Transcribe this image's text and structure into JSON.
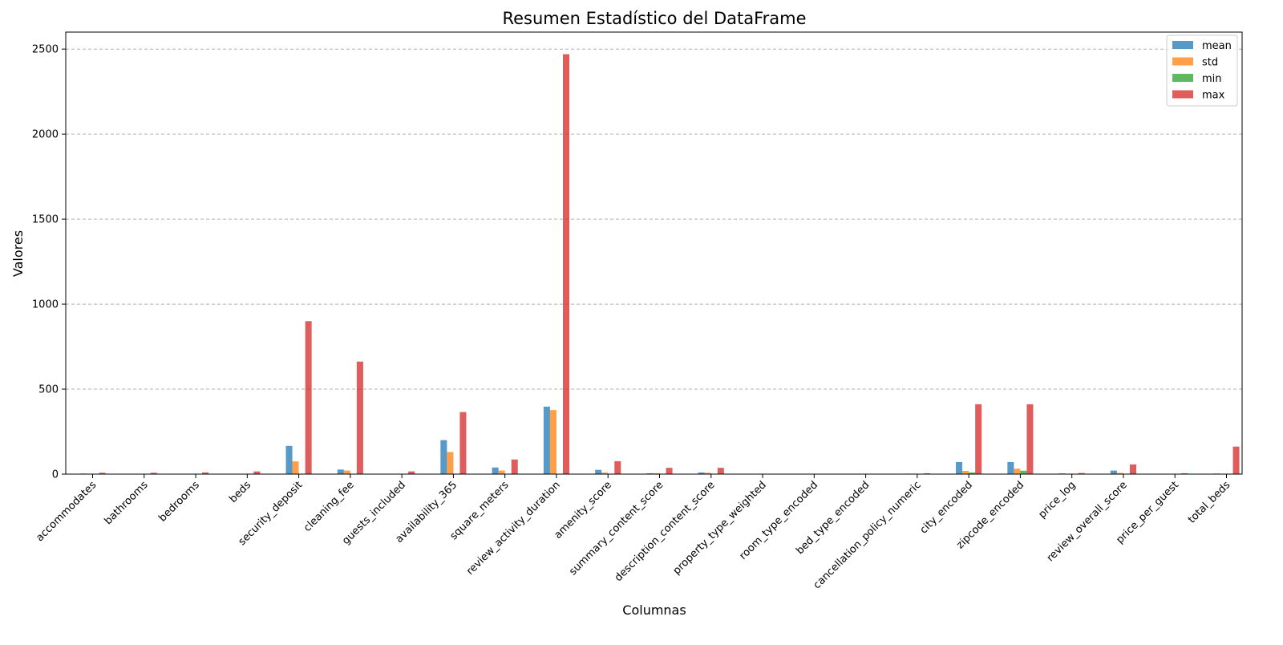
{
  "chart_data": {
    "type": "bar",
    "title": "Resumen Estadístico del DataFrame",
    "xlabel": "Columnas",
    "ylabel": "Valores",
    "ylim": [
      0,
      2600
    ],
    "yticks": [
      0,
      500,
      1000,
      1500,
      2000,
      2500
    ],
    "grid": "y-dashed",
    "legend_position": "top-right",
    "categories": [
      "accommodates",
      "bathrooms",
      "bedrooms",
      "beds",
      "security_deposit",
      "cleaning_fee",
      "guests_included",
      "availability_365",
      "square_meters",
      "review_activity_duration",
      "amenity_score",
      "summary_content_score",
      "description_content_score",
      "property_type_weighted",
      "room_type_encoded",
      "bed_type_encoded",
      "cancellation_policy_numeric",
      "city_encoded",
      "zipcode_encoded",
      "price_log",
      "review_overall_score",
      "price_per_guest",
      "total_beds"
    ],
    "series": [
      {
        "name": "mean",
        "color": "#1f77b4",
        "values": [
          3.3,
          1.3,
          1.4,
          2.1,
          166,
          27,
          1.6,
          200,
          39,
          397,
          25,
          5,
          10,
          1.2,
          0.6,
          0.1,
          2.6,
          71,
          71,
          4.1,
          21,
          2.3,
          3.3
        ]
      },
      {
        "name": "std",
        "color": "#ff7f0e",
        "values": [
          2.1,
          0.6,
          0.9,
          1.6,
          75,
          21,
          1.2,
          130,
          21,
          377,
          9,
          5,
          8,
          0.5,
          0.5,
          0.2,
          1.3,
          19,
          32,
          0.6,
          7,
          1.1,
          2.3
        ]
      },
      {
        "name": "min",
        "color": "#2ca02c",
        "values": [
          1,
          0,
          0,
          1,
          0,
          0,
          1,
          0,
          0,
          0,
          0,
          0,
          0,
          0.3,
          0,
          0,
          1,
          10,
          20,
          2.3,
          1,
          0,
          1
        ]
      },
      {
        "name": "max",
        "color": "#d62728",
        "values": [
          8,
          8,
          10,
          16,
          900,
          662,
          16,
          365,
          86,
          2470,
          76,
          37,
          37,
          2,
          1.7,
          1,
          5,
          411,
          411,
          6.3,
          57,
          5,
          162
        ]
      }
    ]
  }
}
